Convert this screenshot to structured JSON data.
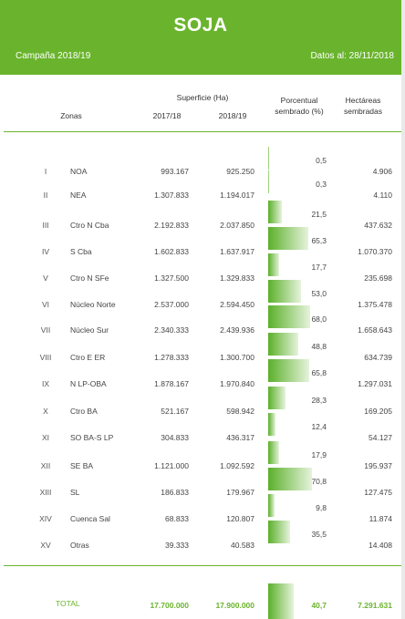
{
  "header": {
    "title": "SOJA",
    "campaign": "Campaña 2018/19",
    "date": "Datos al: 28/11/2018"
  },
  "columns": {
    "zonas": "Zonas",
    "superficie": "Superficie (Ha)",
    "year1": "2017/18",
    "year2": "2018/19",
    "porcentual": "Porcentual sembrado (%)",
    "hectareas": "Hectáreas sembradas"
  },
  "rows": [
    {
      "num": "I",
      "zona": "NOA",
      "s1": "993.167",
      "s2": "925.250",
      "pct": "0,5",
      "pct_value": 0.5,
      "ha": "4.906"
    },
    {
      "num": "II",
      "zona": "NEA",
      "s1": "1.307.833",
      "s2": "1.194.017",
      "pct": "0,3",
      "pct_value": 0.3,
      "ha": "4.110"
    },
    {
      "num": "III",
      "zona": "Ctro N Cba",
      "s1": "2.192.833",
      "s2": "2.037.850",
      "pct": "21,5",
      "pct_value": 21.5,
      "ha": "437.632"
    },
    {
      "num": "IV",
      "zona": "S Cba",
      "s1": "1.602.833",
      "s2": "1.637.917",
      "pct": "65,3",
      "pct_value": 65.3,
      "ha": "1.070.370"
    },
    {
      "num": "V",
      "zona": "Ctro N SFe",
      "s1": "1.327.500",
      "s2": "1.329.833",
      "pct": "17,7",
      "pct_value": 17.7,
      "ha": "235.698"
    },
    {
      "num": "VI",
      "zona": "Núcleo Norte",
      "s1": "2.537.000",
      "s2": "2.594.450",
      "pct": "53,0",
      "pct_value": 53.0,
      "ha": "1.375.478"
    },
    {
      "num": "VII",
      "zona": "Núcleo Sur",
      "s1": "2.340.333",
      "s2": "2.439.936",
      "pct": "68,0",
      "pct_value": 68.0,
      "ha": "1.658.643"
    },
    {
      "num": "VIII",
      "zona": "Ctro E ER",
      "s1": "1.278.333",
      "s2": "1.300.700",
      "pct": "48,8",
      "pct_value": 48.8,
      "ha": "634.739"
    },
    {
      "num": "IX",
      "zona": "N LP-OBA",
      "s1": "1.878.167",
      "s2": "1.970.840",
      "pct": "65,8",
      "pct_value": 65.8,
      "ha": "1.297.031"
    },
    {
      "num": "X",
      "zona": "Ctro BA",
      "s1": "521.167",
      "s2": "598.942",
      "pct": "28,3",
      "pct_value": 28.3,
      "ha": "169.205"
    },
    {
      "num": "XI",
      "zona": "SO BA-S LP",
      "s1": "304.833",
      "s2": "436.317",
      "pct": "12,4",
      "pct_value": 12.4,
      "ha": "54.127"
    },
    {
      "num": "XII",
      "zona": "SE BA",
      "s1": "1.121.000",
      "s2": "1.092.592",
      "pct": "17,9",
      "pct_value": 17.9,
      "ha": "195.937"
    },
    {
      "num": "XIII",
      "zona": "SL",
      "s1": "186.833",
      "s2": "179.967",
      "pct": "70,8",
      "pct_value": 70.8,
      "ha": "127.475"
    },
    {
      "num": "XIV",
      "zona": "Cuenca Sal",
      "s1": "68.833",
      "s2": "120.807",
      "pct": "9,8",
      "pct_value": 9.8,
      "ha": "11.874"
    },
    {
      "num": "XV",
      "zona": "Otras",
      "s1": "39.333",
      "s2": "40.583",
      "pct": "35,5",
      "pct_value": 35.5,
      "ha": "14.408"
    }
  ],
  "total": {
    "label": "TOTAL",
    "s1": "17.700.000",
    "s2": "17.900.000",
    "pct": "40,7",
    "pct_value": 40.7,
    "ha": "7.291.631"
  },
  "colors": {
    "accent": "#6ab42d"
  }
}
